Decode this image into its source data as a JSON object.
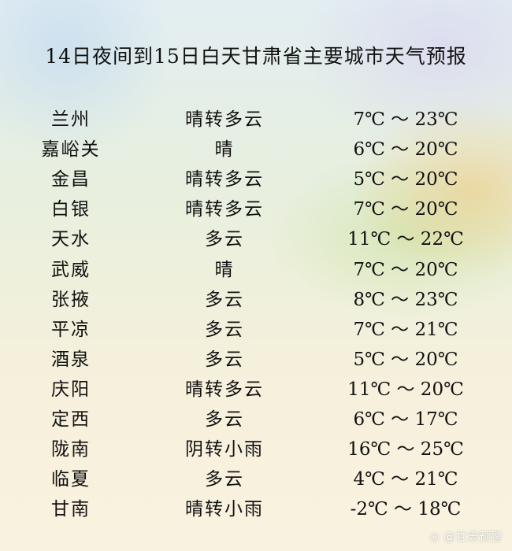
{
  "title": "14日夜间到15日白天甘肃省主要城市天气预报",
  "rows": [
    {
      "city": "兰州",
      "weather": "晴转多云",
      "temp": "7℃ ～ 23℃"
    },
    {
      "city": "嘉峪关",
      "weather": "晴",
      "temp": "6℃ ～ 20℃"
    },
    {
      "city": "金昌",
      "weather": "晴转多云",
      "temp": "5℃ ～ 20℃"
    },
    {
      "city": "白银",
      "weather": "晴转多云",
      "temp": "7℃ ～ 20℃"
    },
    {
      "city": "天水",
      "weather": "多云",
      "temp": "11℃ ～ 22℃"
    },
    {
      "city": "武威",
      "weather": "晴",
      "temp": "7℃ ～ 20℃"
    },
    {
      "city": "张掖",
      "weather": "多云",
      "temp": "8℃ ～ 23℃"
    },
    {
      "city": "平凉",
      "weather": "多云",
      "temp": "7℃ ～ 21℃"
    },
    {
      "city": "酒泉",
      "weather": "多云",
      "temp": "5℃ ～ 20℃"
    },
    {
      "city": "庆阳",
      "weather": "晴转多云",
      "temp": "11℃ ～ 20℃"
    },
    {
      "city": "定西",
      "weather": "多云",
      "temp": "6℃ ～ 17℃"
    },
    {
      "city": "陇南",
      "weather": "阴转小雨",
      "temp": "16℃ ～ 25℃"
    },
    {
      "city": "临夏",
      "weather": "多云",
      "temp": "4℃ ～ 21℃"
    },
    {
      "city": "甘南",
      "weather": "晴转小雨",
      "temp": "-2℃ ～ 18℃"
    }
  ],
  "watermark": "@甘肃预警",
  "watermark_icon": "weibo-icon"
}
